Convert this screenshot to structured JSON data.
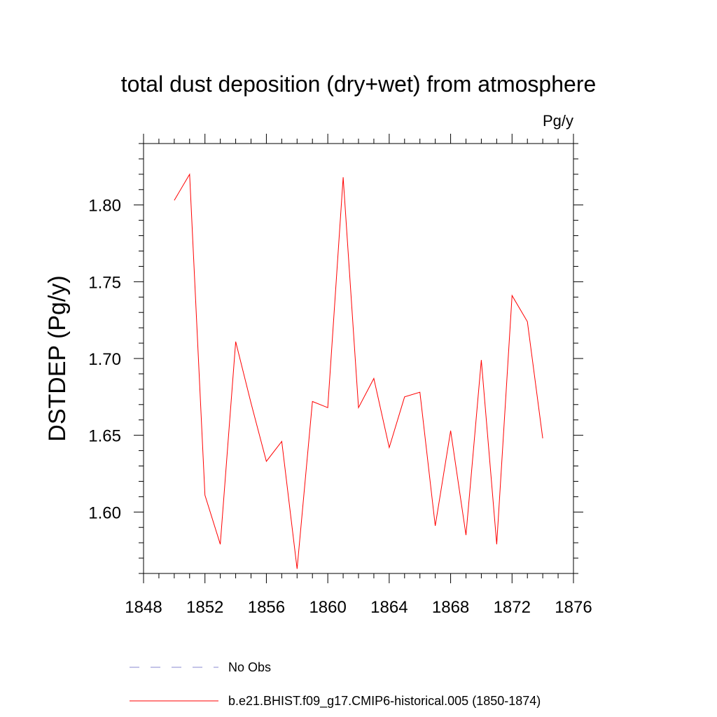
{
  "chart_data": {
    "type": "line",
    "title": "total dust deposition (dry+wet) from atmosphere",
    "units_label": "Pg/y",
    "ylabel": "DSTDEP  (Pg/y)",
    "xlabel": "",
    "xlim": [
      1848,
      1876
    ],
    "ylim": [
      1.56,
      1.84
    ],
    "x_ticks": [
      1848,
      1852,
      1856,
      1860,
      1864,
      1868,
      1872,
      1876
    ],
    "x_tick_labels": [
      "1848",
      "1852",
      "1856",
      "1860",
      "1864",
      "1868",
      "1872",
      "1876"
    ],
    "y_ticks": [
      1.6,
      1.65,
      1.7,
      1.75,
      1.8
    ],
    "y_tick_labels": [
      "1.60",
      "1.65",
      "1.70",
      "1.75",
      "1.80"
    ],
    "grid": false,
    "legend_position": "bottom",
    "series": [
      {
        "name": "b.e21.BHIST.f09_g17.CMIP6-historical.005 (1850-1874)",
        "color": "#ff0000",
        "style": "solid",
        "x": [
          1850,
          1851,
          1852,
          1853,
          1854,
          1855,
          1856,
          1857,
          1858,
          1859,
          1860,
          1861,
          1862,
          1863,
          1864,
          1865,
          1866,
          1867,
          1868,
          1869,
          1870,
          1871,
          1872,
          1873,
          1874
        ],
        "values": [
          1.803,
          1.82,
          1.611,
          1.579,
          1.711,
          1.671,
          1.633,
          1.646,
          1.563,
          1.672,
          1.668,
          1.818,
          1.668,
          1.687,
          1.642,
          1.675,
          1.678,
          1.591,
          1.653,
          1.585,
          1.699,
          1.579,
          1.741,
          1.724,
          1.648
        ]
      }
    ],
    "legend": [
      {
        "label": "No Obs",
        "color": "#8a8ad0",
        "style": "dashed"
      },
      {
        "label": "b.e21.BHIST.f09_g17.CMIP6-historical.005 (1850-1874)",
        "color": "#ff0000",
        "style": "solid"
      }
    ]
  }
}
